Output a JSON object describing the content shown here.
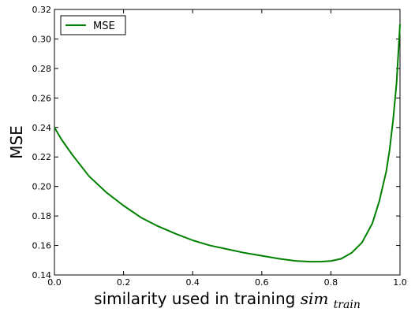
{
  "chart_data": {
    "type": "line",
    "xlabel_main": "similarity used in training",
    "xlabel_sym": "sim",
    "xlabel_sub": "train",
    "ylabel": "MSE",
    "xlim": [
      0.0,
      1.0
    ],
    "ylim": [
      0.14,
      0.32
    ],
    "xticks": [
      0.0,
      0.2,
      0.4,
      0.6,
      0.8,
      1.0
    ],
    "xtick_labels": [
      "0.0",
      "0.2",
      "0.4",
      "0.6",
      "0.8",
      "1.0"
    ],
    "yticks": [
      0.14,
      0.16,
      0.18,
      0.2,
      0.22,
      0.24,
      0.26,
      0.28,
      0.3,
      0.32
    ],
    "ytick_labels": [
      "0.14",
      "0.16",
      "0.18",
      "0.20",
      "0.22",
      "0.24",
      "0.26",
      "0.28",
      "0.30",
      "0.32"
    ],
    "grid": false,
    "legend_position": "top-left",
    "series": [
      {
        "name": "MSE",
        "color": "#008000",
        "x": [
          0.0,
          0.02,
          0.05,
          0.1,
          0.15,
          0.2,
          0.25,
          0.3,
          0.35,
          0.4,
          0.45,
          0.5,
          0.55,
          0.6,
          0.65,
          0.7,
          0.74,
          0.77,
          0.8,
          0.83,
          0.86,
          0.89,
          0.92,
          0.94,
          0.96,
          0.97,
          0.98,
          0.99,
          0.995,
          1.0
        ],
        "y": [
          0.24,
          0.232,
          0.222,
          0.207,
          0.196,
          0.187,
          0.179,
          0.173,
          0.168,
          0.1635,
          0.16,
          0.1575,
          0.155,
          0.153,
          0.151,
          0.1495,
          0.149,
          0.149,
          0.1495,
          0.151,
          0.155,
          0.162,
          0.175,
          0.19,
          0.21,
          0.225,
          0.245,
          0.27,
          0.29,
          0.31
        ]
      }
    ]
  }
}
